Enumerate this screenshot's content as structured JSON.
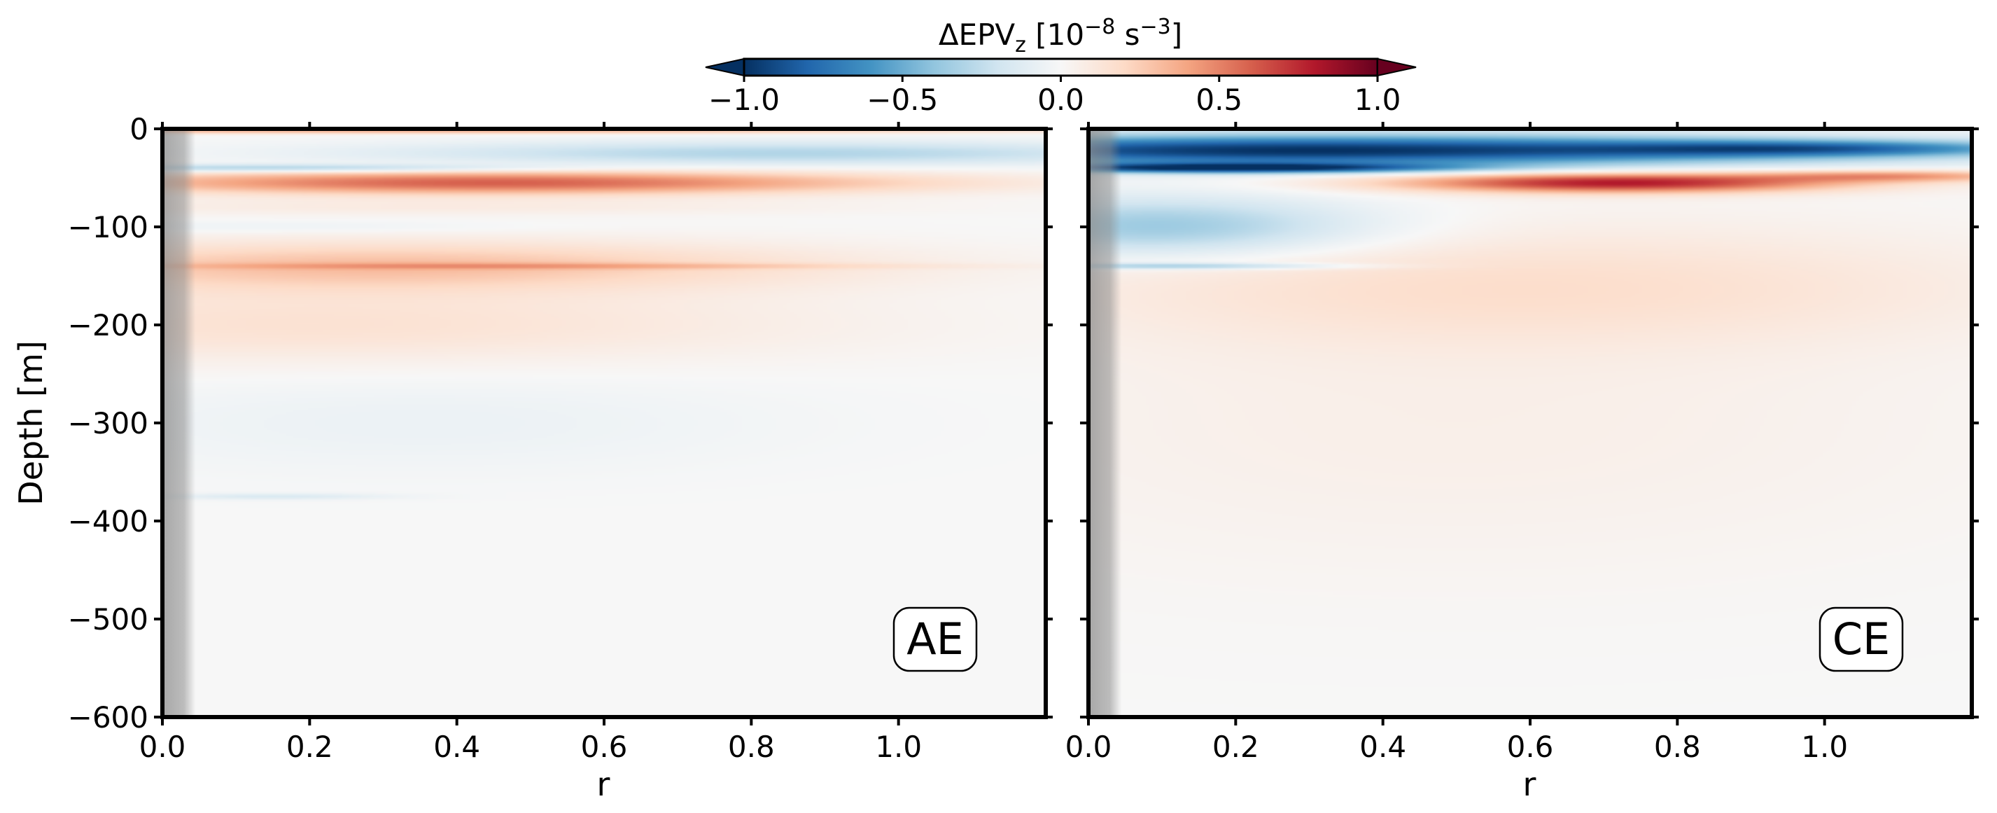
{
  "colorbar": {
    "label_prefix": "ΔEPV",
    "label_sub": "z",
    "label_open": " [10",
    "label_exp1": "−8",
    "label_mid": " s",
    "label_exp2": "−3",
    "label_close": "]",
    "range": [
      -1.0,
      1.0
    ],
    "ticks": [
      -1.0,
      -0.5,
      0.0,
      0.5,
      1.0
    ],
    "tick_labels": [
      "−1.0",
      "−0.5",
      "0.0",
      "0.5",
      "1.0"
    ],
    "colormap": "RdBu_r",
    "extend": "both",
    "stops": [
      "#053061",
      "#2166ac",
      "#4393c3",
      "#92c5de",
      "#d1e5f0",
      "#f7f7f7",
      "#fddbc7",
      "#f4a582",
      "#d6604d",
      "#b2182b",
      "#67001f"
    ]
  },
  "chart_data": [
    {
      "type": "heatmap",
      "panel_tag": "AE",
      "xlabel": "r",
      "ylabel": "Depth [m]",
      "xlim": [
        0.0,
        1.2
      ],
      "ylim": [
        -600,
        0
      ],
      "x_ticks": [
        0.0,
        0.2,
        0.4,
        0.6,
        0.8,
        1.0
      ],
      "x_tick_labels": [
        "0.0",
        "0.2",
        "0.4",
        "0.6",
        "0.8",
        "1.0"
      ],
      "y_ticks": [
        0,
        -100,
        -200,
        -300,
        -400,
        -500,
        -600
      ],
      "y_tick_labels": [
        "0",
        "−100",
        "−200",
        "−300",
        "−400",
        "−500",
        "−600"
      ],
      "masked_core_r": [
        0.0,
        0.045
      ],
      "bands": [
        {
          "depth": -2,
          "width": 3,
          "value": 0.35,
          "r_peak": 0.3,
          "r_spread": 0.9
        },
        {
          "depth": -25,
          "width": 12,
          "value": -0.3,
          "r_peak": 0.85,
          "r_spread": 0.55
        },
        {
          "depth": -40,
          "width": 4,
          "value": -0.35,
          "r_peak": 0.15,
          "r_spread": 0.35
        },
        {
          "depth": -55,
          "width": 12,
          "value": 0.6,
          "r_peak": 0.45,
          "r_spread": 0.55
        },
        {
          "depth": -80,
          "width": 8,
          "value": 0.08,
          "r_peak": 0.35,
          "r_spread": 0.6
        },
        {
          "depth": -100,
          "width": 6,
          "value": -0.06,
          "r_peak": 0.15,
          "r_spread": 0.35
        },
        {
          "depth": -140,
          "width": 25,
          "value": 0.3,
          "r_peak": 0.3,
          "r_spread": 0.6
        },
        {
          "depth": -140,
          "width": 3,
          "value": 0.2,
          "r_peak": 0.5,
          "r_spread": 0.5
        },
        {
          "depth": -200,
          "width": 40,
          "value": 0.15,
          "r_peak": 0.2,
          "r_spread": 0.7
        },
        {
          "depth": -300,
          "width": 50,
          "value": -0.06,
          "r_peak": 0.35,
          "r_spread": 0.5
        },
        {
          "depth": -375,
          "width": 3,
          "value": -0.15,
          "r_peak": 0.15,
          "r_spread": 0.15
        }
      ]
    },
    {
      "type": "heatmap",
      "panel_tag": "CE",
      "xlabel": "r",
      "ylabel": "",
      "xlim": [
        0.0,
        1.2
      ],
      "ylim": [
        -600,
        0
      ],
      "x_ticks": [
        0.0,
        0.2,
        0.4,
        0.6,
        0.8,
        1.0
      ],
      "x_tick_labels": [
        "0.0",
        "0.2",
        "0.4",
        "0.6",
        "0.8",
        "1.0"
      ],
      "y_ticks": [
        0,
        -100,
        -200,
        -300,
        -400,
        -500,
        -600
      ],
      "y_tick_labels": [
        "0",
        "−100",
        "−200",
        "−300",
        "−400",
        "−500",
        "−600"
      ],
      "masked_core_r": [
        0.0,
        0.045
      ],
      "bands": [
        {
          "depth": -22,
          "width": 16,
          "value": -1.0,
          "r_peak": 0.3,
          "r_spread": 0.75
        },
        {
          "depth": -20,
          "width": 8,
          "value": -0.5,
          "r_peak": 1.0,
          "r_spread": 0.3
        },
        {
          "depth": -40,
          "width": 5,
          "value": -0.9,
          "r_peak": 0.2,
          "r_spread": 0.3
        },
        {
          "depth": -55,
          "width": 10,
          "value": 0.8,
          "r_peak": 0.72,
          "r_spread": 0.3
        },
        {
          "depth": -48,
          "width": 6,
          "value": 0.4,
          "r_peak": 1.1,
          "r_spread": 0.2
        },
        {
          "depth": -100,
          "width": 30,
          "value": -0.4,
          "r_peak": 0.1,
          "r_spread": 0.28
        },
        {
          "depth": -140,
          "width": 3,
          "value": -0.35,
          "r_peak": 0.12,
          "r_spread": 0.22
        },
        {
          "depth": -160,
          "width": 60,
          "value": 0.15,
          "r_peak": 0.6,
          "r_spread": 0.65
        },
        {
          "depth": -300,
          "width": 160,
          "value": 0.06,
          "r_peak": 0.5,
          "r_spread": 0.8
        }
      ]
    }
  ]
}
